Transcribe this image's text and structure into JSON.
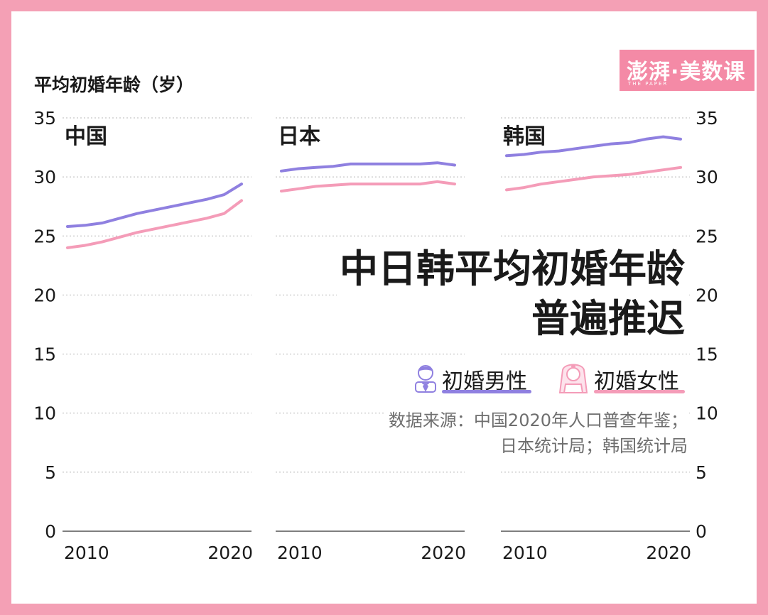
{
  "brand": {
    "name": "澎湃·美数课",
    "sub": "THE PAPER"
  },
  "y_axis_title": "平均初婚年龄（岁）",
  "headline": {
    "line1": "中日韩平均初婚年龄",
    "line2": "普遍推迟"
  },
  "legend": [
    {
      "name": "初婚男性",
      "icon": "groom-icon",
      "color": "#8f80e0"
    },
    {
      "name": "初婚女性",
      "icon": "bride-icon",
      "color": "#f49cb8"
    }
  ],
  "source": {
    "line1": "数据来源：中国2020年人口普查年鉴；",
    "line2": "日本统计局；韩国统计局"
  },
  "colors": {
    "frame": "#f4a0b5",
    "male": "#8f80e0",
    "female": "#f49cb8",
    "grid": "#b8b8b8"
  },
  "chart_data": [
    {
      "type": "line",
      "title": "中国",
      "ylim": [
        0,
        35
      ],
      "yticks": [
        0,
        5,
        10,
        15,
        20,
        25,
        30,
        35
      ],
      "x_ticks": [
        2010,
        2020
      ],
      "xlim": [
        2010,
        2020
      ],
      "series": [
        {
          "name": "初婚男性",
          "x": [
            2010,
            2011,
            2012,
            2013,
            2014,
            2015,
            2016,
            2017,
            2018,
            2019,
            2020
          ],
          "values": [
            25.8,
            25.9,
            26.1,
            26.5,
            26.9,
            27.2,
            27.5,
            27.8,
            28.1,
            28.5,
            29.4
          ]
        },
        {
          "name": "初婚女性",
          "x": [
            2010,
            2011,
            2012,
            2013,
            2014,
            2015,
            2016,
            2017,
            2018,
            2019,
            2020
          ],
          "values": [
            24.0,
            24.2,
            24.5,
            24.9,
            25.3,
            25.6,
            25.9,
            26.2,
            26.5,
            26.9,
            28.0
          ]
        }
      ]
    },
    {
      "type": "line",
      "title": "日本",
      "ylim": [
        0,
        35
      ],
      "yticks": [
        0,
        5,
        10,
        15,
        20,
        25,
        30,
        35
      ],
      "x_ticks": [
        2010,
        2020
      ],
      "xlim": [
        2010,
        2020
      ],
      "series": [
        {
          "name": "初婚男性",
          "x": [
            2010,
            2011,
            2012,
            2013,
            2014,
            2015,
            2016,
            2017,
            2018,
            2019,
            2020
          ],
          "values": [
            30.5,
            30.7,
            30.8,
            30.9,
            31.1,
            31.1,
            31.1,
            31.1,
            31.1,
            31.2,
            31.0
          ]
        },
        {
          "name": "初婚女性",
          "x": [
            2010,
            2011,
            2012,
            2013,
            2014,
            2015,
            2016,
            2017,
            2018,
            2019,
            2020
          ],
          "values": [
            28.8,
            29.0,
            29.2,
            29.3,
            29.4,
            29.4,
            29.4,
            29.4,
            29.4,
            29.6,
            29.4
          ]
        }
      ]
    },
    {
      "type": "line",
      "title": "韩国",
      "ylim": [
        0,
        35
      ],
      "yticks": [
        0,
        5,
        10,
        15,
        20,
        25,
        30,
        35
      ],
      "x_ticks": [
        2010,
        2020
      ],
      "xlim": [
        2010,
        2020
      ],
      "series": [
        {
          "name": "初婚男性",
          "x": [
            2010,
            2011,
            2012,
            2013,
            2014,
            2015,
            2016,
            2017,
            2018,
            2019,
            2020
          ],
          "values": [
            31.8,
            31.9,
            32.1,
            32.2,
            32.4,
            32.6,
            32.8,
            32.9,
            33.2,
            33.4,
            33.2
          ]
        },
        {
          "name": "初婚女性",
          "x": [
            2010,
            2011,
            2012,
            2013,
            2014,
            2015,
            2016,
            2017,
            2018,
            2019,
            2020
          ],
          "values": [
            28.9,
            29.1,
            29.4,
            29.6,
            29.8,
            30.0,
            30.1,
            30.2,
            30.4,
            30.6,
            30.8
          ]
        }
      ]
    }
  ]
}
